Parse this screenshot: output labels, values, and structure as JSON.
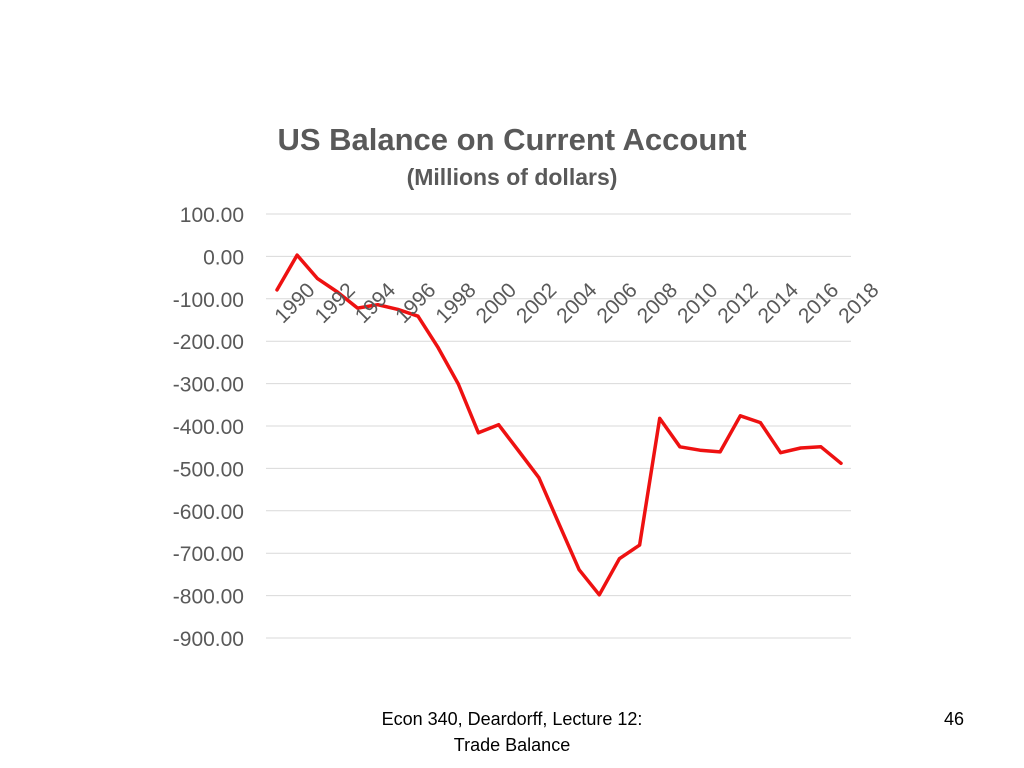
{
  "slide": {
    "footer_line1": "Econ 340, Deardorff, Lecture 12:",
    "footer_line2": "Trade Balance",
    "page_number": "46"
  },
  "chart_data": {
    "type": "line",
    "title": "US Balance on Current Account",
    "subtitle": "(Millions of dollars)",
    "xlabel": "",
    "ylabel": "",
    "ylim": [
      -900,
      100
    ],
    "yticks": [
      "100.00",
      "0.00",
      "-100.00",
      "-200.00",
      "-300.00",
      "-400.00",
      "-500.00",
      "-600.00",
      "-700.00",
      "-800.00",
      "-900.00"
    ],
    "xtick_labels": [
      "1990",
      "1992",
      "1994",
      "1996",
      "1998",
      "2000",
      "2002",
      "2004",
      "2006",
      "2008",
      "2010",
      "2012",
      "2014",
      "2016",
      "2018"
    ],
    "grid": true,
    "legend": "none",
    "series": [
      {
        "color": "#ee1111",
        "x": [
          1990,
          1991,
          1992,
          1993,
          1994,
          1995,
          1996,
          1997,
          1998,
          1999,
          2000,
          2001,
          2002,
          2003,
          2004,
          2005,
          2006,
          2007,
          2008,
          2009,
          2010,
          2011,
          2012,
          2013,
          2014,
          2015,
          2016,
          2017,
          2018
        ],
        "values": [
          -79,
          3,
          -52,
          -84,
          -122,
          -114,
          -125,
          -141,
          -215,
          -301,
          -416,
          -397,
          -459,
          -522,
          -631,
          -739,
          -798,
          -713,
          -681,
          -382,
          -449,
          -457,
          -461,
          -376,
          -392,
          -463,
          -452,
          -449,
          -488
        ]
      }
    ]
  }
}
